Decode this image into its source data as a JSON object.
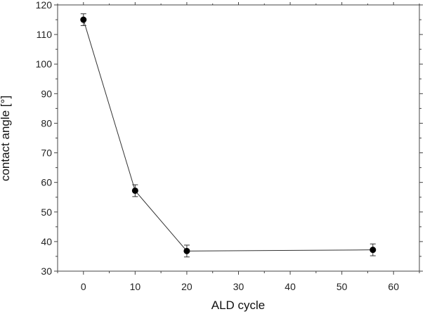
{
  "chart_data": {
    "type": "line",
    "title": "",
    "xlabel": "ALD cycle",
    "ylabel": "contact angle [°]",
    "xlim": [
      -5,
      65
    ],
    "ylim": [
      30,
      120
    ],
    "x_ticks": [
      0,
      10,
      20,
      30,
      40,
      50,
      60
    ],
    "y_ticks": [
      30,
      40,
      50,
      60,
      70,
      80,
      90,
      100,
      110,
      120
    ],
    "grid": false,
    "legend": "none",
    "series": [
      {
        "x": [
          0,
          10,
          20,
          56
        ],
        "y": [
          115.0,
          57.2,
          36.8,
          37.2
        ],
        "error": [
          2.0,
          2.0,
          2.0,
          2.0
        ]
      }
    ],
    "colors": {
      "line": "#333333",
      "marker": "#000000",
      "axis": "#444444",
      "text": "#222222"
    }
  }
}
